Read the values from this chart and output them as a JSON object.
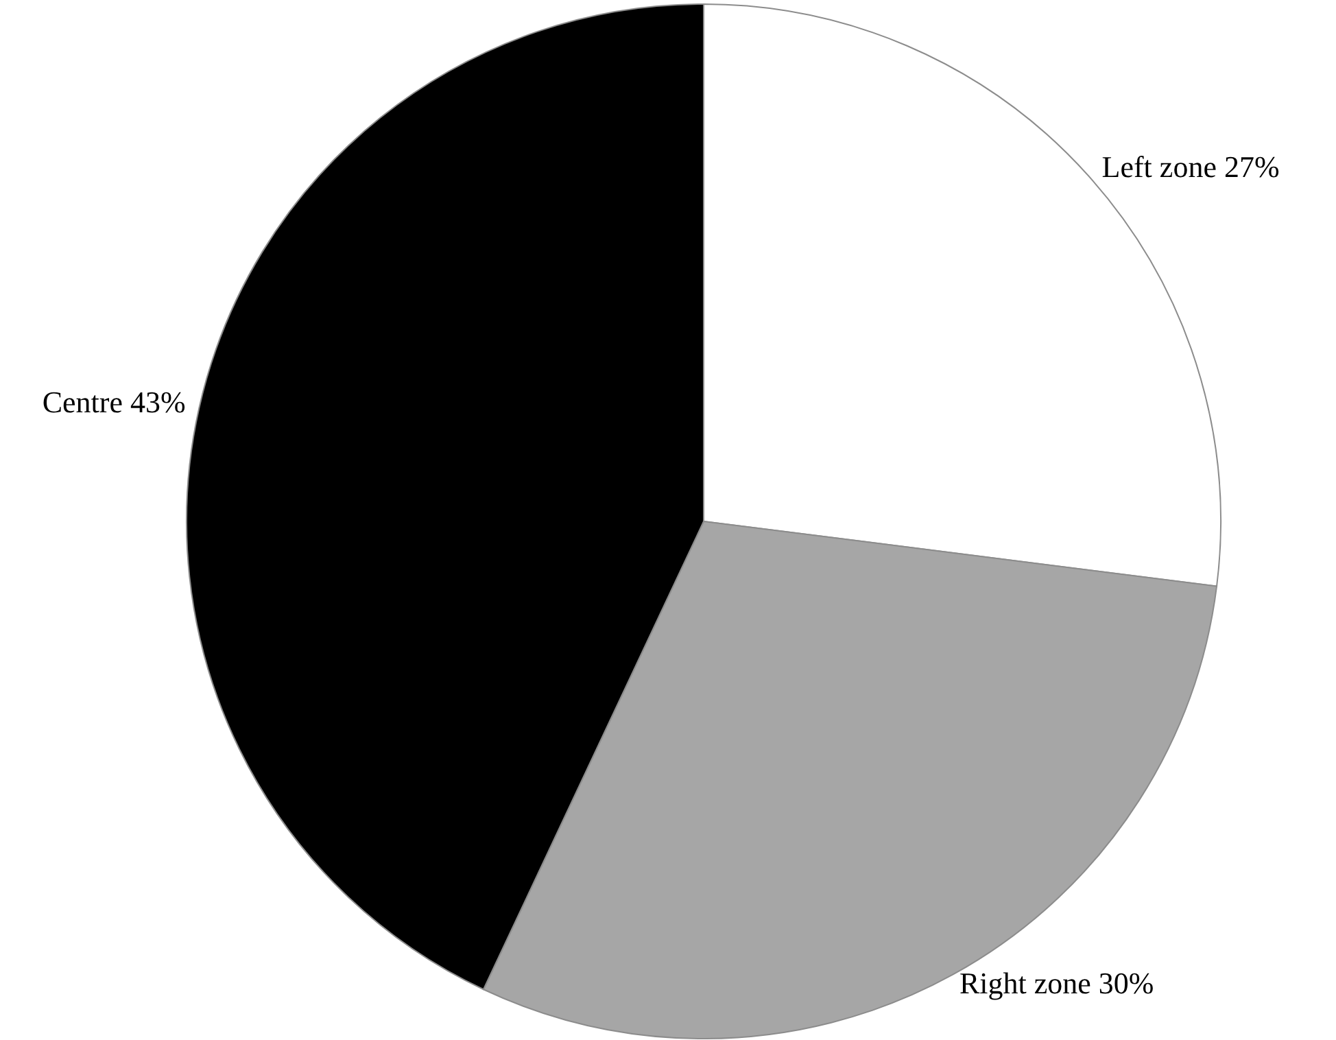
{
  "chart_data": {
    "type": "pie",
    "categories": [
      "Left zone",
      "Right zone",
      "Centre"
    ],
    "values": [
      27,
      30,
      43
    ],
    "colors": [
      "#ffffff",
      "#a6a6a6",
      "#000000"
    ],
    "value_labels": [
      "27%",
      "30%",
      "43%"
    ]
  }
}
